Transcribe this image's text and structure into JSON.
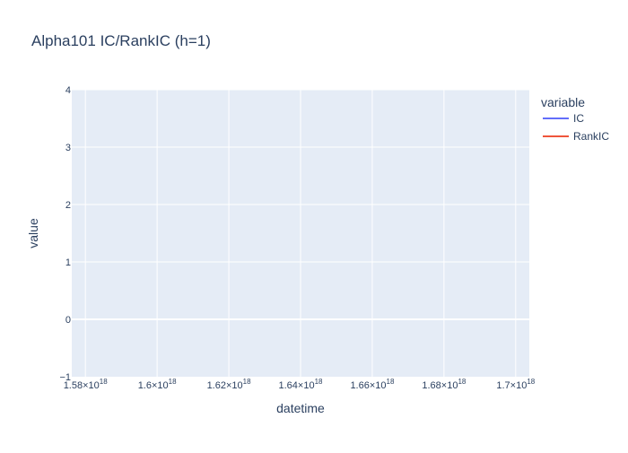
{
  "chart_data": {
    "type": "line",
    "title": "Alpha101 IC/RankIC (h=1)",
    "xlabel": "datetime",
    "ylabel": "value",
    "x_scale": "linear",
    "xlim": [
      1.5762e+18,
      1.7038e+18
    ],
    "ylim": [
      -1,
      4
    ],
    "x_ticks": [
      {
        "value": 1.58e+18,
        "mantissa": "1.58",
        "exponent": "18"
      },
      {
        "value": 1.6e+18,
        "mantissa": "1.6",
        "exponent": "18"
      },
      {
        "value": 1.62e+18,
        "mantissa": "1.62",
        "exponent": "18"
      },
      {
        "value": 1.64e+18,
        "mantissa": "1.64",
        "exponent": "18"
      },
      {
        "value": 1.66e+18,
        "mantissa": "1.66",
        "exponent": "18"
      },
      {
        "value": 1.68e+18,
        "mantissa": "1.68",
        "exponent": "18"
      },
      {
        "value": 1.7e+18,
        "mantissa": "1.7",
        "exponent": "18"
      }
    ],
    "x_tick_times": "×10",
    "y_ticks": [
      {
        "value": -1,
        "label": "−1"
      },
      {
        "value": 0,
        "label": "0"
      },
      {
        "value": 1,
        "label": "1"
      },
      {
        "value": 2,
        "label": "2"
      },
      {
        "value": 3,
        "label": "3"
      },
      {
        "value": 4,
        "label": "4"
      }
    ],
    "grid": true,
    "legend": {
      "title": "variable",
      "placement": "top-right"
    },
    "series": [
      {
        "name": "IC",
        "color": "#636efa",
        "x": [],
        "y": []
      },
      {
        "name": "RankIC",
        "color": "#ef553b",
        "x": [],
        "y": []
      }
    ],
    "colors": {
      "plot_background": "#e5ecf6",
      "grid": "#ffffff",
      "text": "#2a3f5f"
    }
  }
}
